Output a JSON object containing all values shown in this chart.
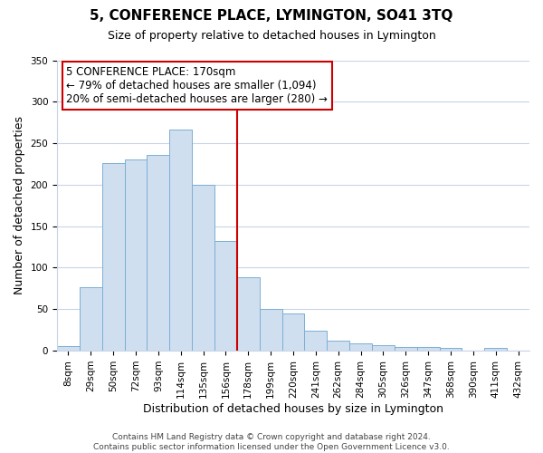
{
  "title": "5, CONFERENCE PLACE, LYMINGTON, SO41 3TQ",
  "subtitle": "Size of property relative to detached houses in Lymington",
  "xlabel": "Distribution of detached houses by size in Lymington",
  "ylabel": "Number of detached properties",
  "bar_labels": [
    "8sqm",
    "29sqm",
    "50sqm",
    "72sqm",
    "93sqm",
    "114sqm",
    "135sqm",
    "156sqm",
    "178sqm",
    "199sqm",
    "220sqm",
    "241sqm",
    "262sqm",
    "284sqm",
    "305sqm",
    "326sqm",
    "347sqm",
    "368sqm",
    "390sqm",
    "411sqm",
    "432sqm"
  ],
  "bar_heights": [
    6,
    77,
    226,
    230,
    236,
    267,
    200,
    132,
    88,
    50,
    45,
    24,
    12,
    9,
    7,
    5,
    5,
    3,
    0,
    3,
    0
  ],
  "bar_color": "#cfdff0",
  "bar_edge_color": "#7bafd4",
  "vline_color": "#cc0000",
  "vline_position": 8,
  "ylim": [
    0,
    350
  ],
  "yticks": [
    0,
    50,
    100,
    150,
    200,
    250,
    300,
    350
  ],
  "annotation_title": "5 CONFERENCE PLACE: 170sqm",
  "annotation_line1": "← 79% of detached houses are smaller (1,094)",
  "annotation_line2": "20% of semi-detached houses are larger (280) →",
  "annotation_box_color": "#ffffff",
  "annotation_box_edge": "#cc0000",
  "footer_line1": "Contains HM Land Registry data © Crown copyright and database right 2024.",
  "footer_line2": "Contains public sector information licensed under the Open Government Licence v3.0.",
  "background_color": "#ffffff",
  "grid_color": "#c8d4e8",
  "title_fontsize": 11,
  "subtitle_fontsize": 9,
  "axis_label_fontsize": 9,
  "tick_fontsize": 7.5,
  "annotation_fontsize": 8.5,
  "footer_fontsize": 6.5
}
